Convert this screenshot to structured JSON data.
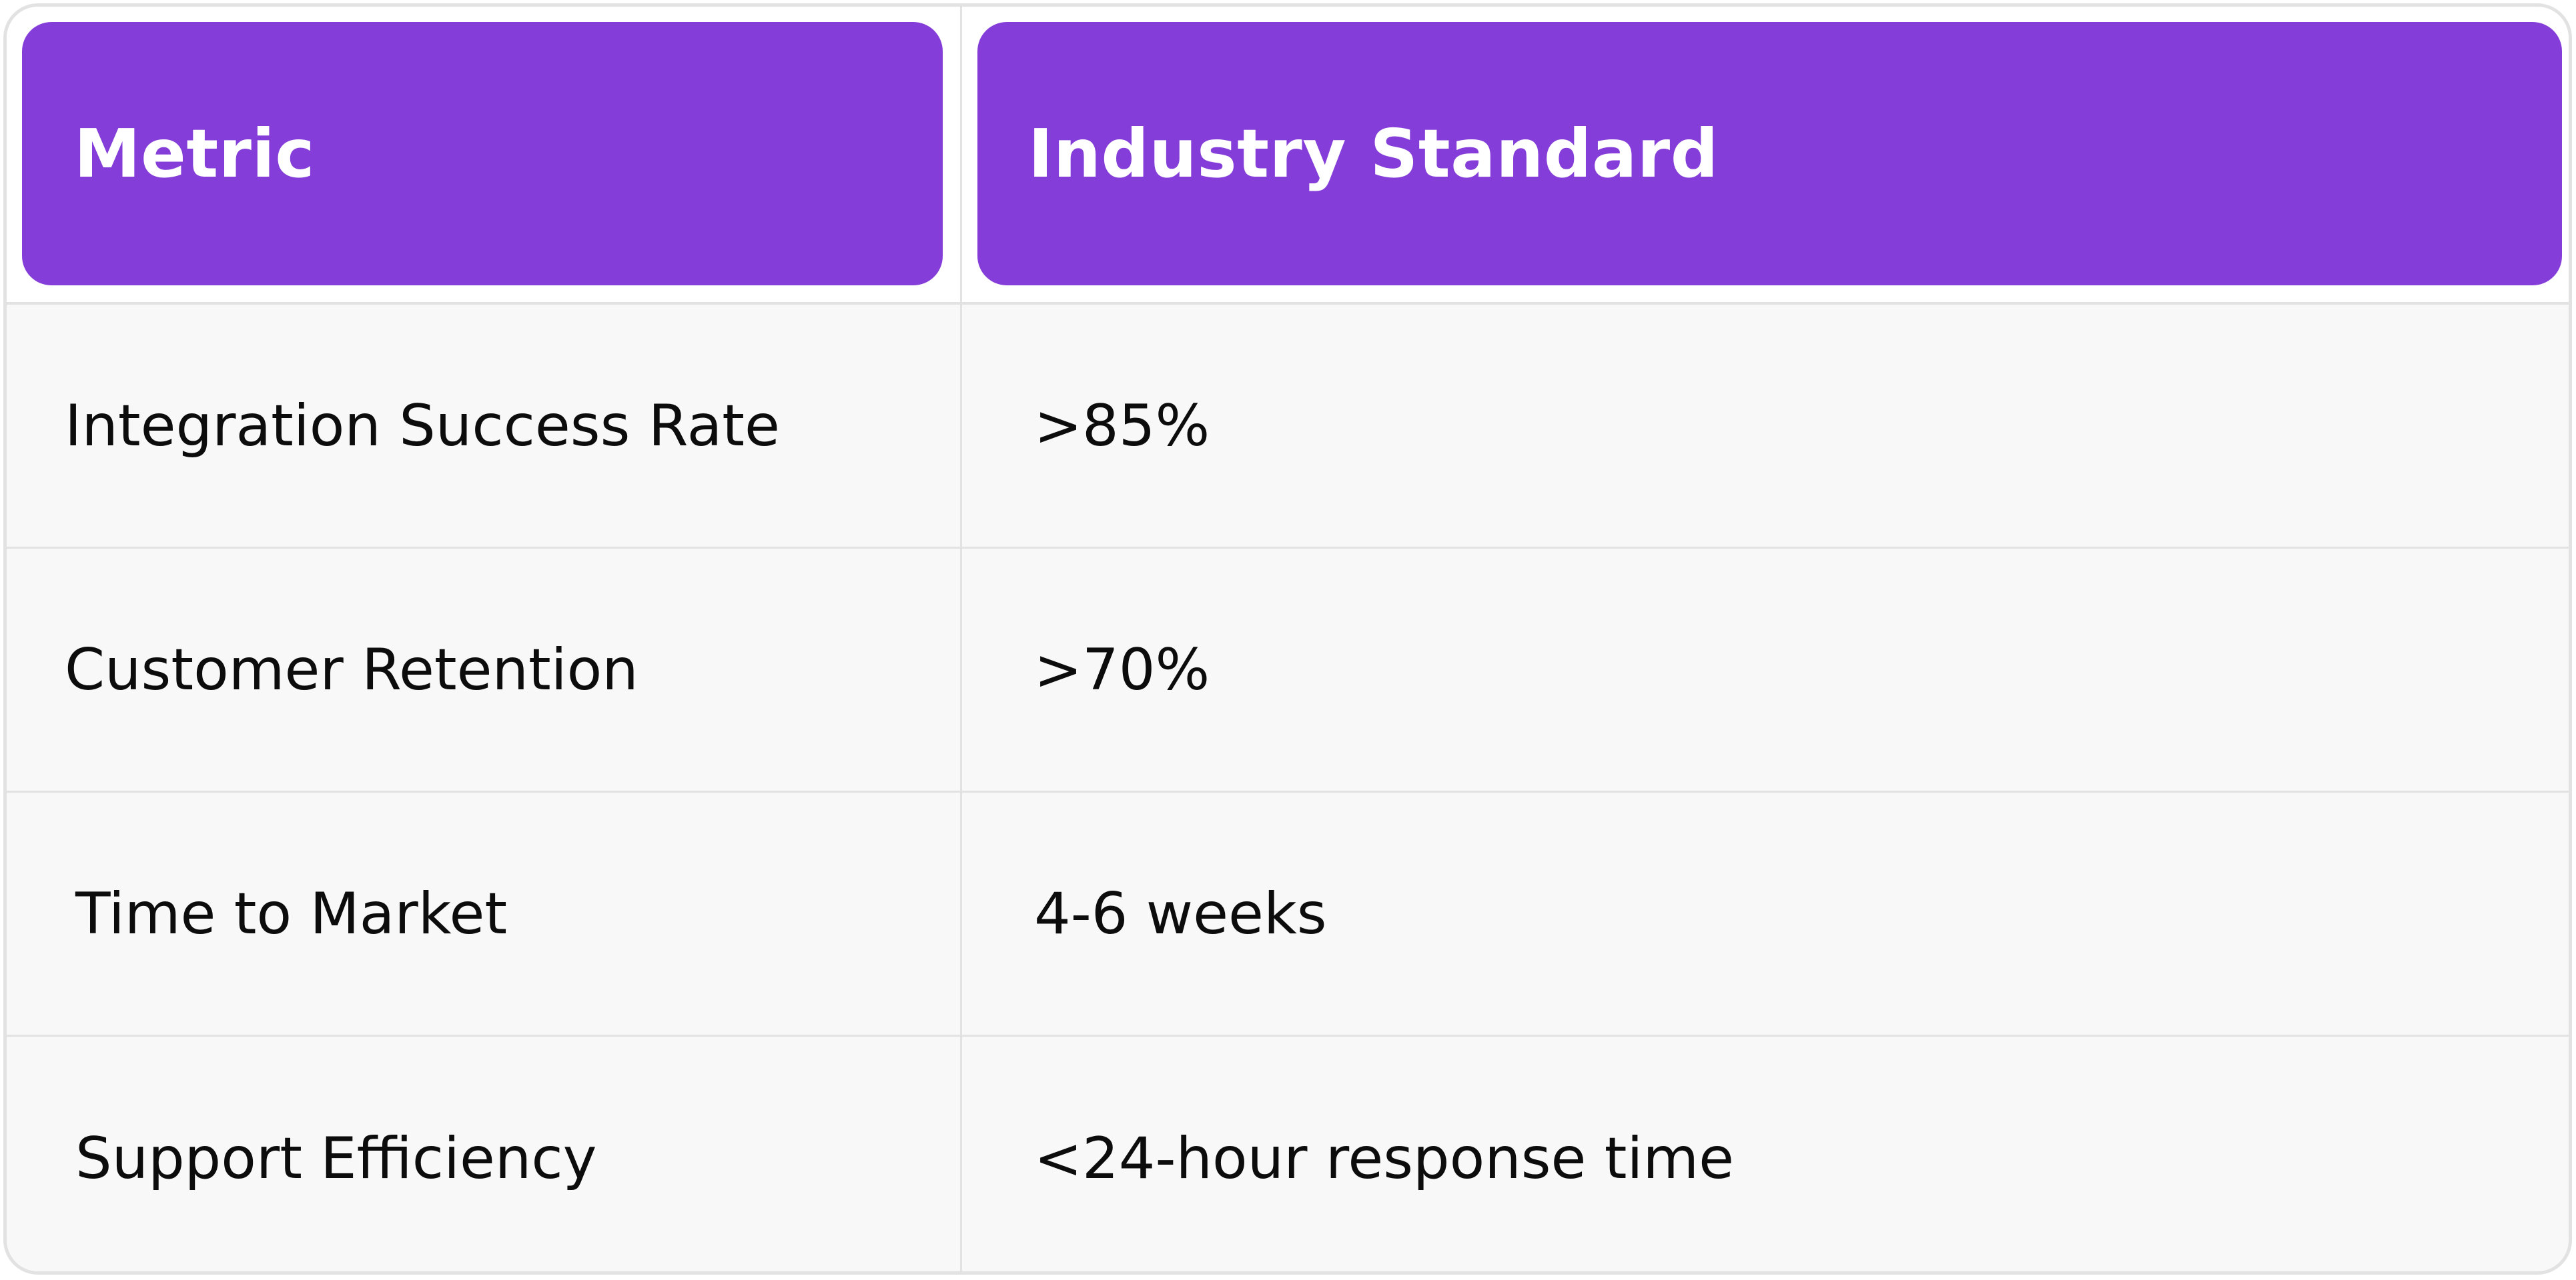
{
  "table": {
    "headers": [
      "Metric",
      "Industry Standard"
    ],
    "rows": [
      {
        "metric": "Integration Success Rate",
        "standard": ">85%"
      },
      {
        "metric": "Customer Retention",
        "standard": ">70%"
      },
      {
        "metric": "Time to Market",
        "standard": "4-6 weeks"
      },
      {
        "metric": "Support Efficiency",
        "standard": "<24-hour response time"
      }
    ]
  },
  "colors": {
    "header_bg": "#843dd8",
    "header_text": "#ffffff",
    "body_bg": "#f8f8f8",
    "border": "#e2e2e2",
    "body_text": "#0c0c0c"
  }
}
